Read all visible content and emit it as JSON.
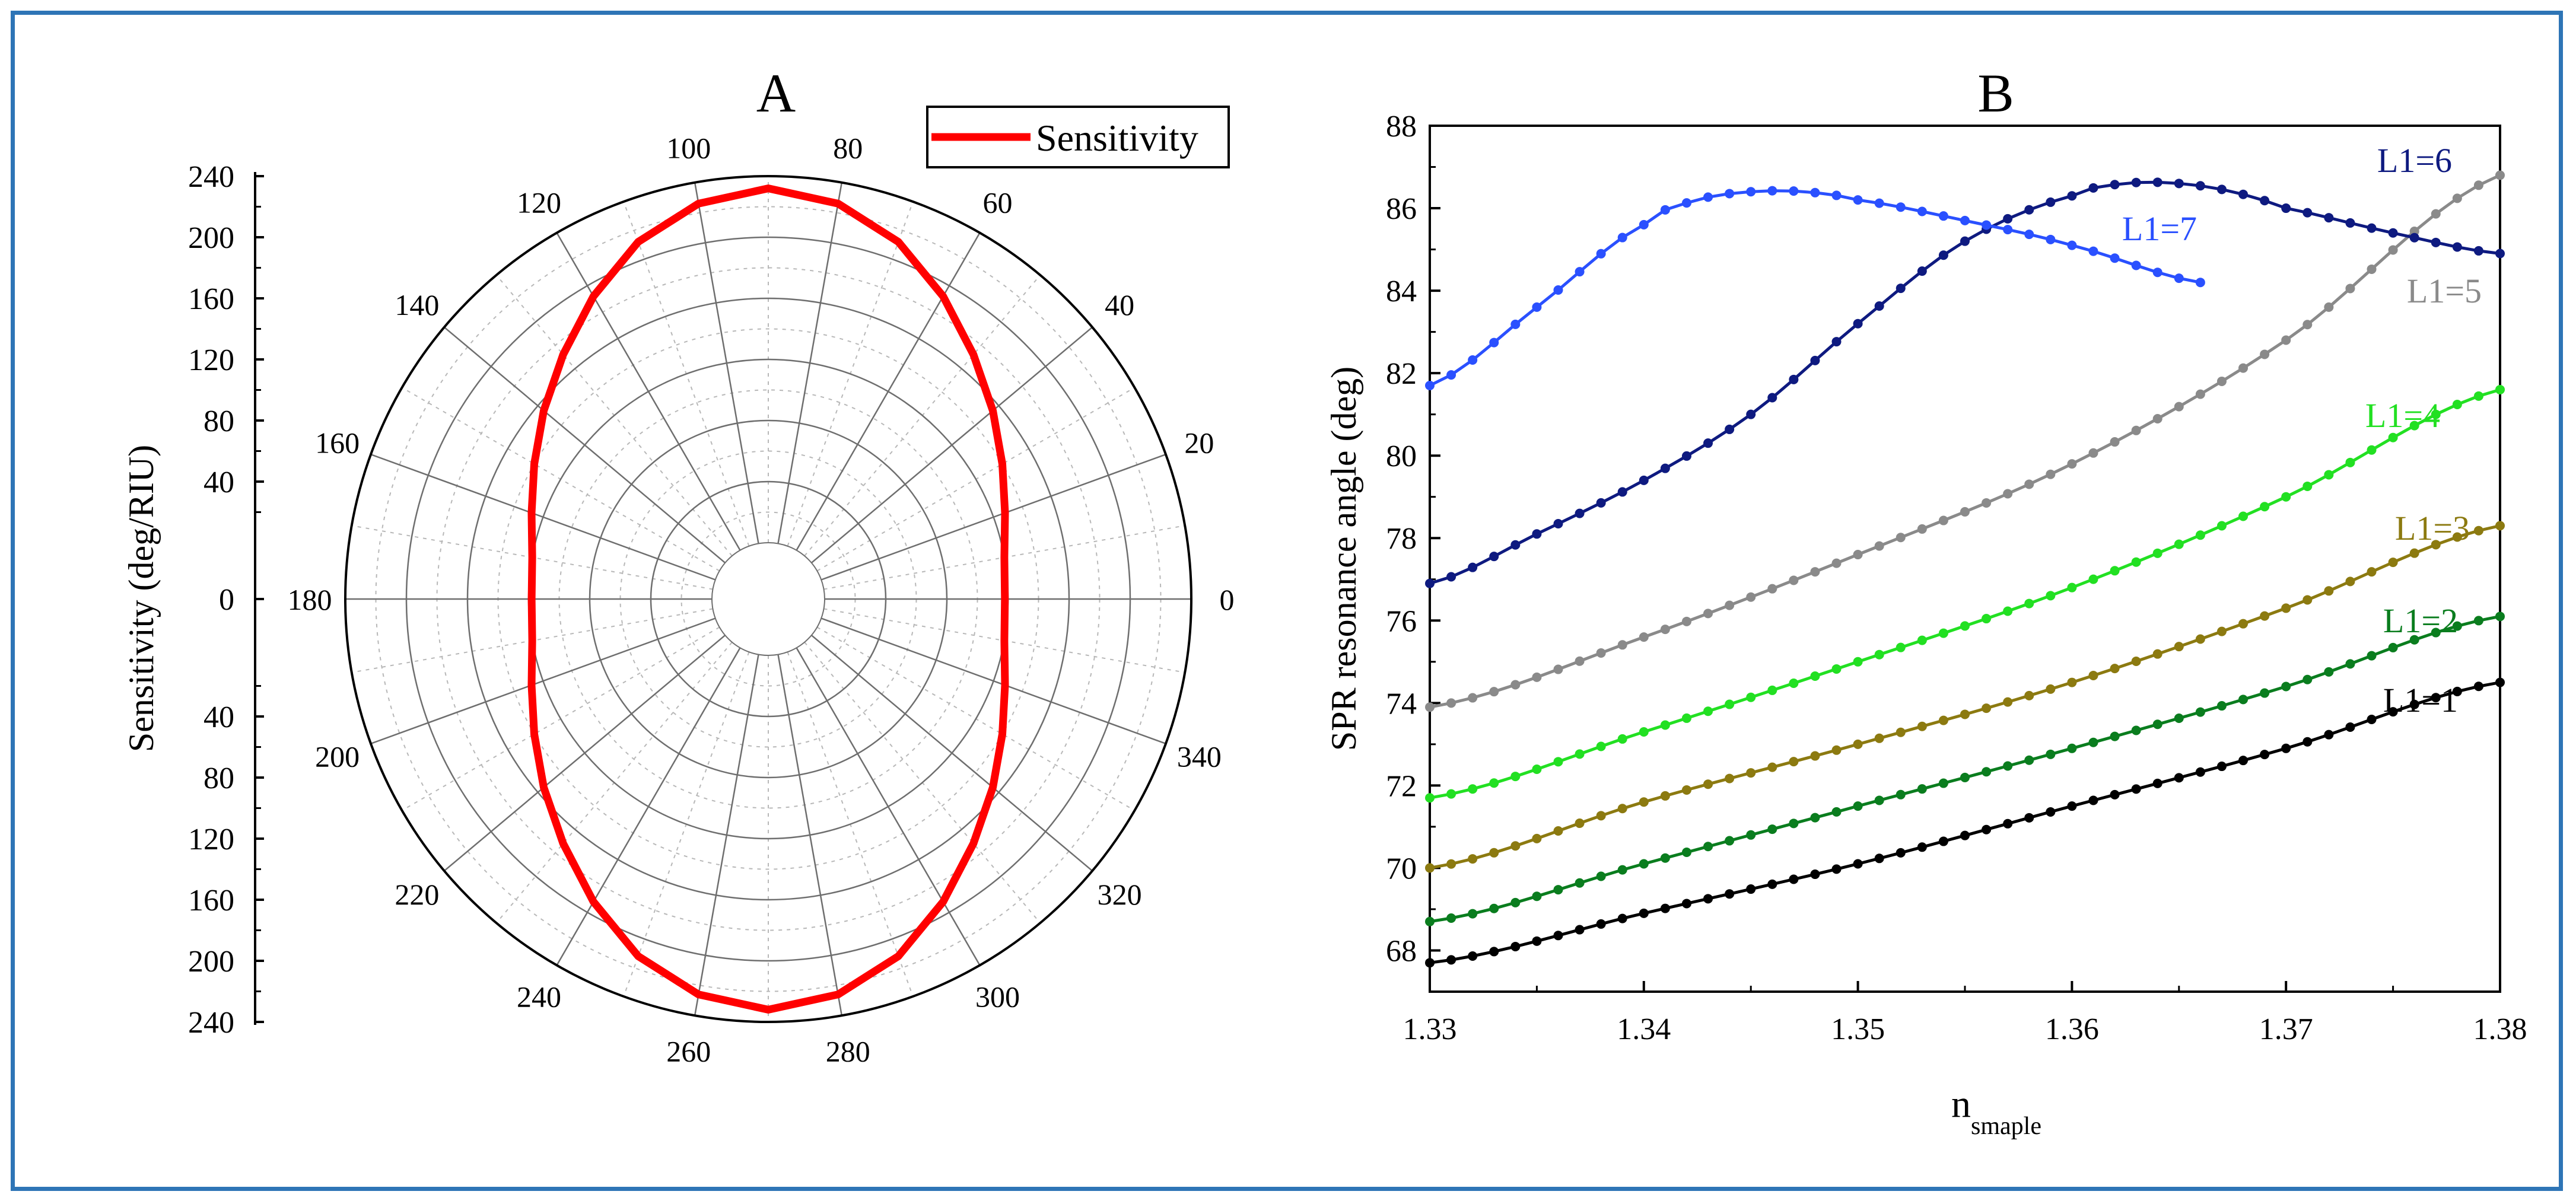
{
  "chart_data": [
    {
      "panel": "A",
      "type": "polar",
      "title": "A",
      "ylabel": "Sensitivity (deg/RIU)",
      "radial_ticks_upper": [
        "240",
        "200",
        "160",
        "120",
        "80",
        "40",
        "0"
      ],
      "radial_ticks_lower": [
        "40",
        "80",
        "120",
        "160",
        "200",
        "240"
      ],
      "angle_ticks": [
        "0",
        "20",
        "40",
        "60",
        "80",
        "100",
        "120",
        "140",
        "160",
        "180",
        "200",
        "220",
        "240",
        "260",
        "280",
        "300",
        "320",
        "340"
      ],
      "radial_range": [
        0,
        240
      ],
      "rings": [
        40,
        80,
        120,
        160,
        200,
        240
      ],
      "legend": "Sensitivity",
      "series": [
        {
          "name": "Sensitivity",
          "color": "#ff0000",
          "theta_deg": [
            0,
            10,
            20,
            30,
            40,
            50,
            60,
            70,
            80,
            90,
            100,
            110,
            120,
            130,
            140,
            150,
            160,
            170,
            180
          ],
          "r": [
            118,
            120,
            128,
            140,
            155,
            172,
            192,
            212,
            226,
            232,
            226,
            212,
            192,
            172,
            155,
            140,
            128,
            120,
            118
          ]
        }
      ]
    },
    {
      "panel": "B",
      "type": "line",
      "title": "B",
      "xlabel_main": "n",
      "xlabel_sub": "smaple",
      "ylabel": "SPR resonance angle (deg)",
      "xlim": [
        1.33,
        1.38
      ],
      "ylim": [
        67,
        88
      ],
      "xticks": [
        "1.33",
        "1.34",
        "1.35",
        "1.36",
        "1.37",
        "1.38"
      ],
      "yticks": [
        "68",
        "70",
        "72",
        "74",
        "76",
        "78",
        "80",
        "82",
        "84",
        "86",
        "88"
      ],
      "series": [
        {
          "name": "L1=1",
          "color": "#000000",
          "x": [
            1.33,
            1.34,
            1.35,
            1.36,
            1.37,
            1.38
          ],
          "y": [
            67.7,
            68.9,
            70.1,
            71.5,
            72.9,
            74.5
          ]
        },
        {
          "name": "L1=2",
          "color": "#0a7d1e",
          "x": [
            1.33,
            1.34,
            1.35,
            1.36,
            1.37,
            1.38
          ],
          "y": [
            68.7,
            70.1,
            71.5,
            72.9,
            74.4,
            76.1
          ]
        },
        {
          "name": "L1=3",
          "color": "#8c7a10",
          "x": [
            1.33,
            1.34,
            1.35,
            1.36,
            1.37,
            1.38
          ],
          "y": [
            70.0,
            71.6,
            73.0,
            74.5,
            76.3,
            78.3
          ]
        },
        {
          "name": "L1=4",
          "color": "#22e022",
          "x": [
            1.33,
            1.34,
            1.35,
            1.36,
            1.37,
            1.38
          ],
          "y": [
            71.7,
            73.3,
            75.0,
            76.8,
            79.0,
            81.6
          ]
        },
        {
          "name": "L1=5",
          "color": "#8a8a8a",
          "x": [
            1.33,
            1.34,
            1.35,
            1.36,
            1.37,
            1.38
          ],
          "y": [
            73.9,
            75.6,
            77.6,
            79.8,
            82.8,
            86.8
          ]
        },
        {
          "name": "L1=6",
          "color": "#0e1a80",
          "x": [
            1.33,
            1.335,
            1.34,
            1.345,
            1.35,
            1.355,
            1.36,
            1.3625,
            1.365,
            1.3675,
            1.37,
            1.375,
            1.38
          ],
          "y": [
            76.9,
            78.1,
            79.4,
            81.0,
            83.2,
            85.2,
            86.3,
            86.6,
            86.6,
            86.4,
            86.0,
            85.4,
            84.9
          ]
        },
        {
          "name": "L1=7",
          "color": "#2a50ff",
          "x": [
            1.33,
            1.335,
            1.34,
            1.3425,
            1.345,
            1.3475,
            1.35,
            1.355,
            1.36,
            1.366
          ],
          "y": [
            81.7,
            83.6,
            85.6,
            86.2,
            86.4,
            86.4,
            86.2,
            85.7,
            85.1,
            84.2
          ]
        }
      ]
    }
  ]
}
